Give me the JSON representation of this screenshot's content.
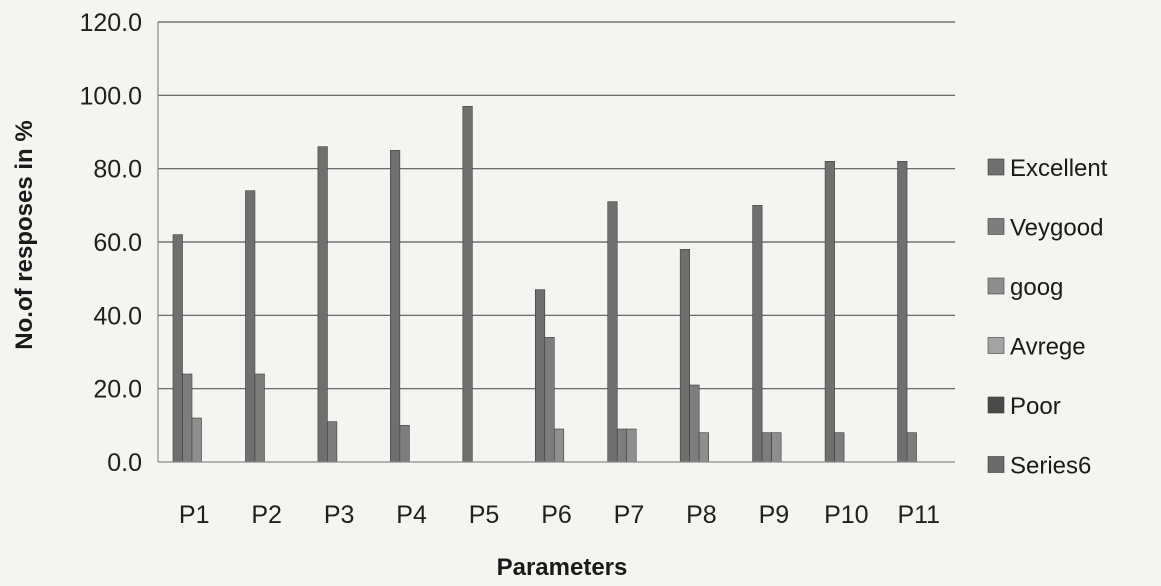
{
  "chart_data": {
    "type": "bar",
    "title": "",
    "xlabel": "Parameters",
    "ylabel": "No.of resposes in %",
    "ylim": [
      0,
      120
    ],
    "ytick_values": [
      0,
      20,
      40,
      60,
      80,
      100,
      120
    ],
    "yticks": [
      "0.0",
      "20.0",
      "40.0",
      "60.0",
      "80.0",
      "100.0",
      "120.0"
    ],
    "grid": true,
    "legend_position": "right",
    "categories": [
      "P1",
      "P2",
      "P3",
      "P4",
      "P5",
      "P6",
      "P7",
      "P8",
      "P9",
      "P10",
      "P11"
    ],
    "series": [
      {
        "name": "Excellent",
        "color": "#6f6f6f",
        "values": [
          62,
          74,
          86,
          85,
          97,
          47,
          71,
          58,
          70,
          82,
          82
        ]
      },
      {
        "name": "Veygood",
        "color": "#7d7d7d",
        "values": [
          24,
          24,
          11,
          10,
          0,
          34,
          9,
          21,
          8,
          8,
          8
        ]
      },
      {
        "name": "goog",
        "color": "#8e8e8e",
        "values": [
          12,
          0,
          0,
          0,
          0,
          9,
          9,
          8,
          8,
          0,
          0
        ]
      },
      {
        "name": "Avrege",
        "color": "#a3a3a3",
        "values": [
          0,
          0,
          0,
          0,
          0,
          0,
          0,
          0,
          0,
          0,
          0
        ]
      },
      {
        "name": "Poor",
        "color": "#4a4a4a",
        "values": [
          0,
          0,
          0,
          0,
          0,
          0,
          0,
          0,
          0,
          0,
          0
        ]
      },
      {
        "name": "Series6",
        "color": "#6a6a6a",
        "values": [
          0,
          0,
          0,
          0,
          0,
          0,
          0,
          0,
          0,
          0,
          0
        ]
      }
    ]
  }
}
